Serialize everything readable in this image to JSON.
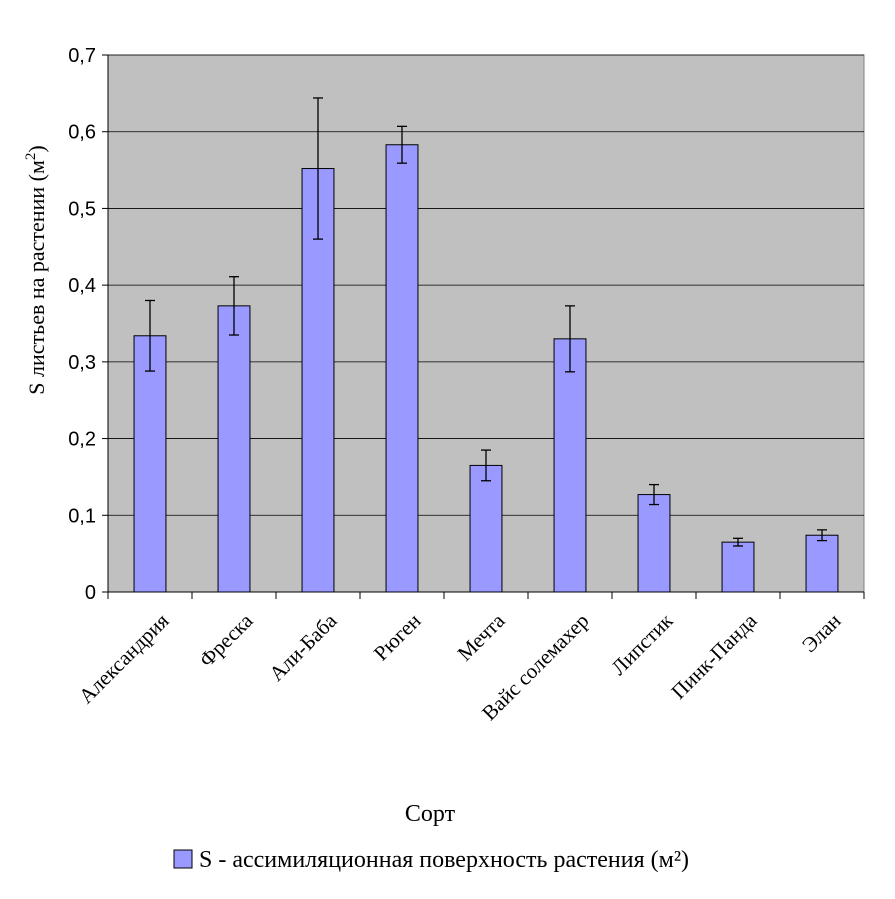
{
  "chart_data": {
    "type": "bar",
    "categories": [
      "Александрия",
      "Фреска",
      "Али-Баба",
      "Рюген",
      "Мечта",
      "Вайс солемахер",
      "Липстик",
      "Пинк-Панда",
      "Элан"
    ],
    "series": [
      {
        "name": "S - ассимиляционная поверхность растения (м²)",
        "values": [
          0.334,
          0.373,
          0.552,
          0.583,
          0.165,
          0.33,
          0.127,
          0.065,
          0.074
        ],
        "error": [
          0.046,
          0.038,
          0.092,
          0.024,
          0.02,
          0.043,
          0.013,
          0.005,
          0.007
        ],
        "color": "#9999ff"
      }
    ],
    "xlabel": "Сорт",
    "ylabel": "S листьев на растении (м",
    "ylabel_sup": "2",
    "ylabel_close": ")",
    "yticks": [
      "0",
      "0,1",
      "0,2",
      "0,3",
      "0,4",
      "0,5",
      "0,6",
      "0,7"
    ],
    "ylim": [
      0,
      0.7
    ],
    "grid": true,
    "plot_background": "#c0c0c0",
    "legend_position": "bottom"
  }
}
